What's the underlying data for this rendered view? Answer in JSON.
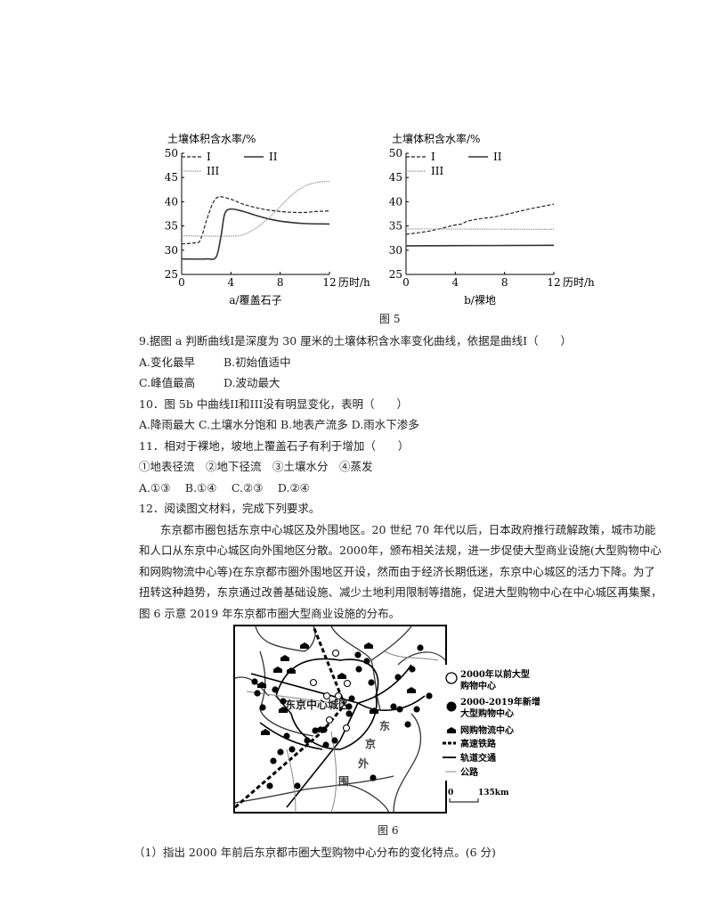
{
  "chart_data": [
    {
      "type": "line",
      "title": "a/覆盖石子",
      "ylabel": "土壤体积含水率/%",
      "xlabel": "历时/h",
      "xlim": [
        0,
        12
      ],
      "ylim": [
        25,
        50
      ],
      "xticks": [
        "0",
        "4",
        "8",
        "12"
      ],
      "yticks": [
        "25",
        "30",
        "35",
        "40",
        "45",
        "50"
      ],
      "legend": "top",
      "series": [
        {
          "name": "I",
          "style": "dashed",
          "x": [
            0,
            1,
            1.5,
            2,
            2.5,
            3,
            4,
            5,
            6,
            7,
            8,
            9,
            10,
            11,
            12
          ],
          "y": [
            31.3,
            31.5,
            32,
            36,
            39.5,
            41,
            40.5,
            39.5,
            38.8,
            38.3,
            38,
            37.8,
            37.8,
            38,
            38.1
          ]
        },
        {
          "name": "II",
          "style": "solid",
          "x": [
            0,
            2,
            2.8,
            3.2,
            3.5,
            4,
            5,
            6,
            7,
            8,
            9,
            10,
            12
          ],
          "y": [
            28.2,
            28.2,
            28.6,
            33,
            37.5,
            38.5,
            38,
            37.2,
            36.5,
            36,
            35.7,
            35.5,
            35.4
          ]
        },
        {
          "name": "III",
          "style": "dotted",
          "x": [
            0,
            2,
            4,
            5,
            6,
            7,
            8,
            9,
            10,
            11,
            12
          ],
          "y": [
            33,
            32.9,
            32.9,
            33.2,
            34.5,
            36.5,
            39,
            41.5,
            43.2,
            44,
            44.2
          ]
        }
      ]
    },
    {
      "type": "line",
      "title": "b/裸地",
      "ylabel": "土壤体积含水率/%",
      "xlabel": "历时/h",
      "xlim": [
        0,
        12
      ],
      "ylim": [
        25,
        50
      ],
      "xticks": [
        "0",
        "4",
        "8",
        "12"
      ],
      "yticks": [
        "25",
        "30",
        "35",
        "40",
        "45",
        "50"
      ],
      "legend": "top",
      "series": [
        {
          "name": "I",
          "style": "dashed",
          "x": [
            0,
            1,
            2,
            3,
            4,
            4.5,
            5,
            6,
            7,
            8,
            9,
            10,
            11,
            12
          ],
          "y": [
            33.3,
            33.6,
            34,
            34.6,
            35.2,
            35.4,
            36,
            36.5,
            36.8,
            37.3,
            37.9,
            38.5,
            39,
            39.5
          ]
        },
        {
          "name": "II",
          "style": "solid",
          "x": [
            0,
            12
          ],
          "y": [
            30.9,
            31
          ]
        },
        {
          "name": "III",
          "style": "dotted",
          "x": [
            0,
            12
          ],
          "y": [
            34.4,
            34.3
          ]
        }
      ]
    }
  ],
  "fig5_caption": "图 5",
  "q9": {
    "stem": "9.据图 a 判断曲线I是深度为 30 厘米的土壤体积含水率变化曲线，依据是曲线I（　　）",
    "opt_a": "A.变化最早",
    "opt_b": "B.初始值适中",
    "opt_c": "C.峰值最高",
    "opt_d": "D.波动最大"
  },
  "q10": {
    "stem": "10．图 5b 中曲线II和III没有明显变化，表明（　　）",
    "options": "A.降雨最大 C.土壤水分饱和 B.地表产流多 D.雨水下渗多"
  },
  "q11": {
    "stem": "11．相对于裸地，坡地上覆盖石子有利于增加（　　）",
    "items": "①地表径流　②地下径流　③土壤水分　④蒸发",
    "options": "A.①③　 B.①④　 C.②③　 D.②④"
  },
  "q12": {
    "stem": "12．阅读图文材料，完成下列要求。",
    "para": [
      "东京都市圈包括东京中心城区及外围地区。20 世纪 70 年代以后，日本政府推行疏解政策，城市功能",
      "和人口从东京中心城区向外围地区分散。2000年，颁布相关法规，进一步促使大型商业设施(大型购物中心",
      "和网购物流中心等)在东京都市圈外围地区开设，然而由于经济长期低迷，东京中心城区的活力下降。为了",
      "扭转这种趋势，东京通过改善基础设施、减少土地利用限制等措施，促进大型购物中心在中心城区再集聚，",
      "图 6 示意 2019 年东京都市圈大型商业设施的分布。"
    ],
    "sub1": "（1）指出 2000 年前后东京都市圈大型购物中心分布的变化特点。(6 分)"
  },
  "map": {
    "center_label": "东京中心城区",
    "outer_label": [
      "东",
      "京",
      "外",
      "围"
    ],
    "legend": {
      "old_mall": "2000年以前大型购物中心",
      "old_mall_l1": "2000年以前大型",
      "old_mall_l2": "购物中心",
      "new_mall_l1": "2000-2019年新增",
      "new_mall_l2": "大型购物中心",
      "logistics": "网购物流中心",
      "hsr": "高速铁路",
      "rail": "轨道交通",
      "road": "公路"
    },
    "scale": {
      "zero": "0",
      "dist": "135km"
    },
    "caption": "图 6"
  }
}
